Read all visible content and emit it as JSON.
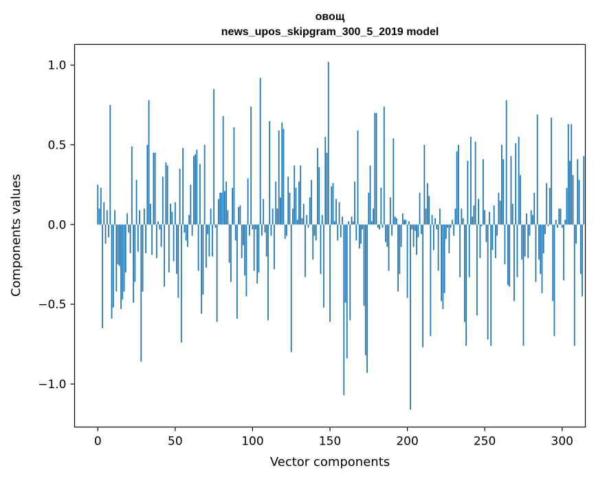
{
  "chart_data": {
    "type": "bar",
    "title": "овощ",
    "subtitle": "news_upos_skipgram_300_5_2019 model",
    "xlabel": "Vector components",
    "ylabel": "Components values",
    "xlim": [
      -15,
      315
    ],
    "ylim": [
      -1.27,
      1.13
    ],
    "x_ticks": [
      0,
      50,
      100,
      150,
      200,
      250,
      300
    ],
    "x_tick_labels": [
      "0",
      "50",
      "100",
      "150",
      "200",
      "250",
      "300"
    ],
    "y_ticks": [
      -1.0,
      -0.5,
      0.0,
      0.5,
      1.0
    ],
    "y_tick_labels": [
      "−1.0",
      "−0.5",
      "0.0",
      "0.5",
      "1.0"
    ],
    "bar_color": "#1f77b4",
    "grid": false,
    "values": [
      0.25,
      0.1,
      0.23,
      -0.65,
      0.14,
      -0.12,
      0.09,
      -0.08,
      0.75,
      -0.59,
      -0.52,
      0.09,
      -0.42,
      -0.25,
      -0.26,
      -0.53,
      -0.47,
      -0.42,
      -0.3,
      0.07,
      -0.05,
      -0.18,
      0.49,
      -0.49,
      -0.36,
      0.28,
      -0.17,
      0.09,
      -0.86,
      -0.42,
      0.1,
      -0.18,
      0.5,
      0.78,
      0.13,
      -0.19,
      0.45,
      0.45,
      -0.21,
      0.02,
      -0.03,
      -0.14,
      0.3,
      -0.39,
      0.39,
      0.37,
      -0.3,
      0.13,
      0.08,
      -0.23,
      0.14,
      -0.31,
      -0.46,
      0.35,
      -0.74,
      0.48,
      -0.05,
      -0.1,
      -0.14,
      0.06,
      0.25,
      -0.07,
      0.43,
      0.44,
      0.47,
      -0.29,
      0.38,
      -0.56,
      -0.44,
      0.5,
      -0.27,
      -0.06,
      -0.2,
      0.1,
      -0.2,
      0.85,
      -0.02,
      -0.61,
      0.16,
      0.2,
      0.2,
      0.68,
      0.21,
      0.27,
      0.09,
      -0.24,
      -0.36,
      0.23,
      0.61,
      -0.1,
      -0.59,
      0.11,
      0.12,
      -0.21,
      -0.13,
      -0.32,
      -0.45,
      0.29,
      -0.07,
      0.74,
      -0.03,
      -0.29,
      -0.03,
      -0.37,
      -0.3,
      0.92,
      -0.07,
      0.16,
      -0.05,
      -0.2,
      -0.6,
      0.65,
      -0.07,
      0.1,
      -0.28,
      0.27,
      0.1,
      0.59,
      0.17,
      0.64,
      0.6,
      -0.09,
      -0.07,
      0.3,
      0.2,
      -0.8,
      0.1,
      0.37,
      0.23,
      0.03,
      0.27,
      0.37,
      0.04,
      0.13,
      -0.33,
      0.06,
      -0.02,
      0.17,
      0.28,
      -0.22,
      -0.07,
      -0.1,
      0.48,
      0.36,
      -0.31,
      0.06,
      -0.52,
      0.55,
      0.45,
      1.02,
      -0.61,
      0.24,
      0.26,
      0.02,
      0.16,
      -0.1,
      0.14,
      -0.08,
      0.05,
      -1.07,
      -0.49,
      -0.84,
      0.02,
      -0.6,
      0.05,
      0.02,
      0.27,
      -0.1,
      0.59,
      -0.15,
      -0.12,
      -0.03,
      -0.51,
      -0.82,
      -0.93,
      0.2,
      0.37,
      0.02,
      0.1,
      0.7,
      0.7,
      -0.02,
      -0.03,
      0.23,
      -0.02,
      0.74,
      -0.11,
      -0.14,
      -0.29,
      0.17,
      -0.07,
      0.54,
      0.05,
      0.04,
      -0.42,
      -0.31,
      -0.14,
      0.07,
      0.03,
      0.03,
      -0.46,
      0.02,
      -1.16,
      -0.03,
      -0.14,
      -0.04,
      -0.19,
      -0.08,
      0.2,
      -0.06,
      -0.77,
      0.5,
      0.1,
      0.26,
      0.18,
      -0.7,
      0.06,
      -0.16,
      0.04,
      -0.03,
      -0.29,
      0.1,
      -0.48,
      -0.53,
      -0.43,
      -0.09,
      -0.02,
      -0.18,
      -0.02,
      0.03,
      -0.07,
      0.1,
      0.46,
      0.5,
      -0.33,
      0.1,
      0.04,
      -0.61,
      -0.76,
      0.4,
      -0.33,
      0.55,
      0.05,
      0.12,
      0.52,
      -0.57,
      0.16,
      -0.21,
      -0.01,
      0.41,
      0.09,
      -0.11,
      -0.72,
      0.08,
      -0.76,
      -0.16,
      0.12,
      -0.21,
      -0.07,
      0.2,
      0.15,
      0.5,
      0.41,
      -0.25,
      0.78,
      -0.38,
      -0.39,
      0.43,
      0.13,
      -0.48,
      0.51,
      -0.33,
      0.55,
      0.31,
      -0.22,
      -0.76,
      -0.2,
      0.07,
      -0.21,
      -0.07,
      0.09,
      0.06,
      0.2,
      -0.36,
      0.69,
      -0.22,
      -0.31,
      -0.43,
      -0.18,
      -0.06,
      0.26,
      -0.01,
      0.23,
      0.67,
      -0.48,
      -0.7,
      0.03,
      -0.02,
      0.1,
      0.1,
      -0.02,
      -0.35,
      0.03,
      0.23,
      0.63,
      0.4,
      0.63,
      0.31,
      -0.76,
      -0.12,
      0.41,
      0.28,
      -0.31,
      -0.45,
      0.43
    ]
  }
}
